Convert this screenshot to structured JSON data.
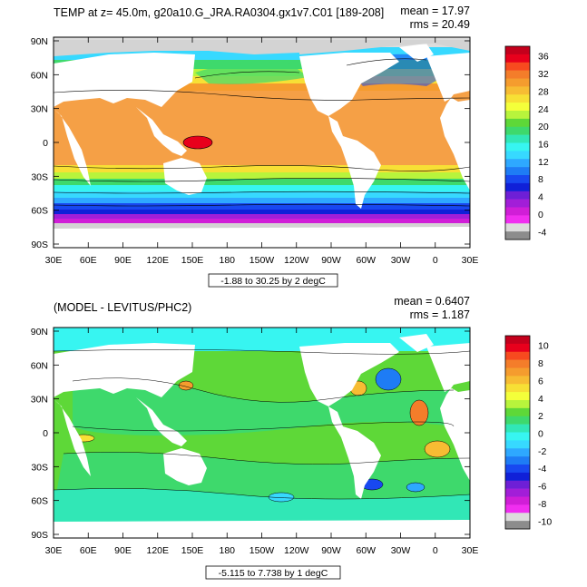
{
  "panels": [
    {
      "title": "TEMP at z=  45.0m, g20a10.G_JRA.RA0304.gx1v7.C01 [189-208]",
      "mean_label": "mean = 17.97",
      "rms_label": "rms = 20.49",
      "contour_info": "-1.88 to 30.25 by 2 degC",
      "colorbar_labels": [
        "36",
        "32",
        "28",
        "24",
        "20",
        "16",
        "12",
        "8",
        "4",
        "0",
        "-4"
      ],
      "colorbar_colors": [
        "#c4001c",
        "#e8001c",
        "#f74a1f",
        "#f47d2a",
        "#f59c2e",
        "#f7bc33",
        "#f7e035",
        "#f4ff3a",
        "#b8f43c",
        "#5ed838",
        "#3ed96c",
        "#31e7b6",
        "#37f5f1",
        "#37d9ff",
        "#2ea8ff",
        "#1e7cf5",
        "#1848f0",
        "#1020d8",
        "#6e1fd6",
        "#a21ed8",
        "#d01ed7",
        "#f02ef0",
        "#dcdcdc",
        "#8c8c8c"
      ]
    },
    {
      "title": "(MODEL - LEVITUS/PHC2)",
      "mean_label": "mean = 0.6407",
      "rms_label": "rms = 1.187",
      "contour_info": "-5.115 to 7.738 by 1 degC",
      "colorbar_labels": [
        "10",
        "8",
        "6",
        "4",
        "2",
        "0",
        "-2",
        "-4",
        "-6",
        "-8",
        "-10"
      ],
      "colorbar_colors": [
        "#c4001c",
        "#e8001c",
        "#f74a1f",
        "#f47d2a",
        "#f59c2e",
        "#f7bc33",
        "#f7e035",
        "#f4ff3a",
        "#b8f43c",
        "#5ed838",
        "#3ed96c",
        "#31e7b6",
        "#37f5f1",
        "#37d9ff",
        "#2ea8ff",
        "#1e7cf5",
        "#1848f0",
        "#1020d8",
        "#6e1fd6",
        "#a21ed8",
        "#d01ed7",
        "#f02ef0",
        "#dcdcdc",
        "#8c8c8c"
      ]
    }
  ],
  "axes": {
    "lat_labels": [
      "90N",
      "60N",
      "30N",
      "0",
      "30S",
      "60S",
      "90S"
    ],
    "lon_labels": [
      "30E",
      "60E",
      "90E",
      "120E",
      "150E",
      "180",
      "150W",
      "120W",
      "90W",
      "60W",
      "30W",
      "0",
      "30E"
    ]
  },
  "colors": {
    "land": "#ffffff",
    "ice": "#d3d3d3",
    "map_border": "#000000"
  }
}
